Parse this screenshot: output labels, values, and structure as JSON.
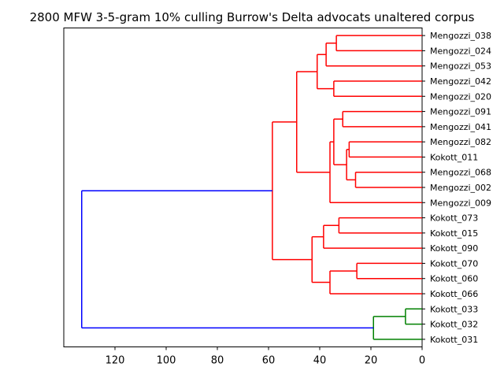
{
  "chart_data": {
    "type": "dendrogram",
    "title": "2800 MFW 3-5-gram 10% culling Burrow's Delta advocats unaltered corpus",
    "orientation": "left",
    "xlim": [
      140,
      0
    ],
    "x_ticks": [
      120,
      100,
      80,
      60,
      40,
      20,
      0
    ],
    "colors": {
      "red": "#ff0000",
      "blue": "#0000ff",
      "green": "#008000"
    },
    "leaves": [
      "Mengozzi_038",
      "Mengozzi_024",
      "Mengozzi_053",
      "Mengozzi_042",
      "Mengozzi_020",
      "Mengozzi_091",
      "Mengozzi_041",
      "Mengozzi_082",
      "Kokott_011",
      "Mengozzi_068",
      "Mengozzi_002",
      "Mengozzi_009",
      "Kokott_073",
      "Kokott_015",
      "Kokott_090",
      "Kokott_070",
      "Kokott_060",
      "Kokott_066",
      "Kokott_033",
      "Kokott_032",
      "Kokott_031"
    ],
    "tree": {
      "h": 133,
      "c": "blue",
      "ch": [
        {
          "h": 58.5,
          "c": "red",
          "ch": [
            {
              "h": 49,
              "c": "red",
              "ch": [
                {
                  "h": 41,
                  "c": "red",
                  "ch": [
                    {
                      "h": 37.5,
                      "c": "red",
                      "ch": [
                        {
                          "h": 33.5,
                          "c": "red",
                          "ch": [
                            {
                              "leaf": 0
                            },
                            {
                              "leaf": 1
                            }
                          ]
                        },
                        {
                          "leaf": 2
                        }
                      ]
                    },
                    {
                      "h": 34.5,
                      "c": "red",
                      "ch": [
                        {
                          "leaf": 3
                        },
                        {
                          "leaf": 4
                        }
                      ]
                    }
                  ]
                },
                {
                  "h": 36,
                  "c": "red",
                  "ch": [
                    {
                      "h": 34.5,
                      "c": "red",
                      "ch": [
                        {
                          "h": 31,
                          "c": "red",
                          "ch": [
                            {
                              "leaf": 5
                            },
                            {
                              "leaf": 6
                            }
                          ]
                        },
                        {
                          "h": 29.5,
                          "c": "red",
                          "ch": [
                            {
                              "h": 28.5,
                              "c": "red",
                              "ch": [
                                {
                                  "leaf": 7
                                },
                                {
                                  "leaf": 8
                                }
                              ]
                            },
                            {
                              "h": 26,
                              "c": "red",
                              "ch": [
                                {
                                  "leaf": 9
                                },
                                {
                                  "leaf": 10
                                }
                              ]
                            }
                          ]
                        }
                      ]
                    },
                    {
                      "leaf": 11
                    }
                  ]
                }
              ]
            },
            {
              "h": 43,
              "c": "red",
              "ch": [
                {
                  "h": 38.5,
                  "c": "red",
                  "ch": [
                    {
                      "h": 32.5,
                      "c": "red",
                      "ch": [
                        {
                          "leaf": 12
                        },
                        {
                          "leaf": 13
                        }
                      ]
                    },
                    {
                      "leaf": 14
                    }
                  ]
                },
                {
                  "h": 36,
                  "c": "red",
                  "ch": [
                    {
                      "h": 25.5,
                      "c": "red",
                      "ch": [
                        {
                          "leaf": 15
                        },
                        {
                          "leaf": 16
                        }
                      ]
                    },
                    {
                      "leaf": 17
                    }
                  ]
                }
              ]
            }
          ]
        },
        {
          "h": 19,
          "c": "green",
          "ch": [
            {
              "h": 6.5,
              "c": "green",
              "ch": [
                {
                  "leaf": 18
                },
                {
                  "leaf": 19
                }
              ]
            },
            {
              "leaf": 20
            }
          ]
        }
      ]
    }
  }
}
